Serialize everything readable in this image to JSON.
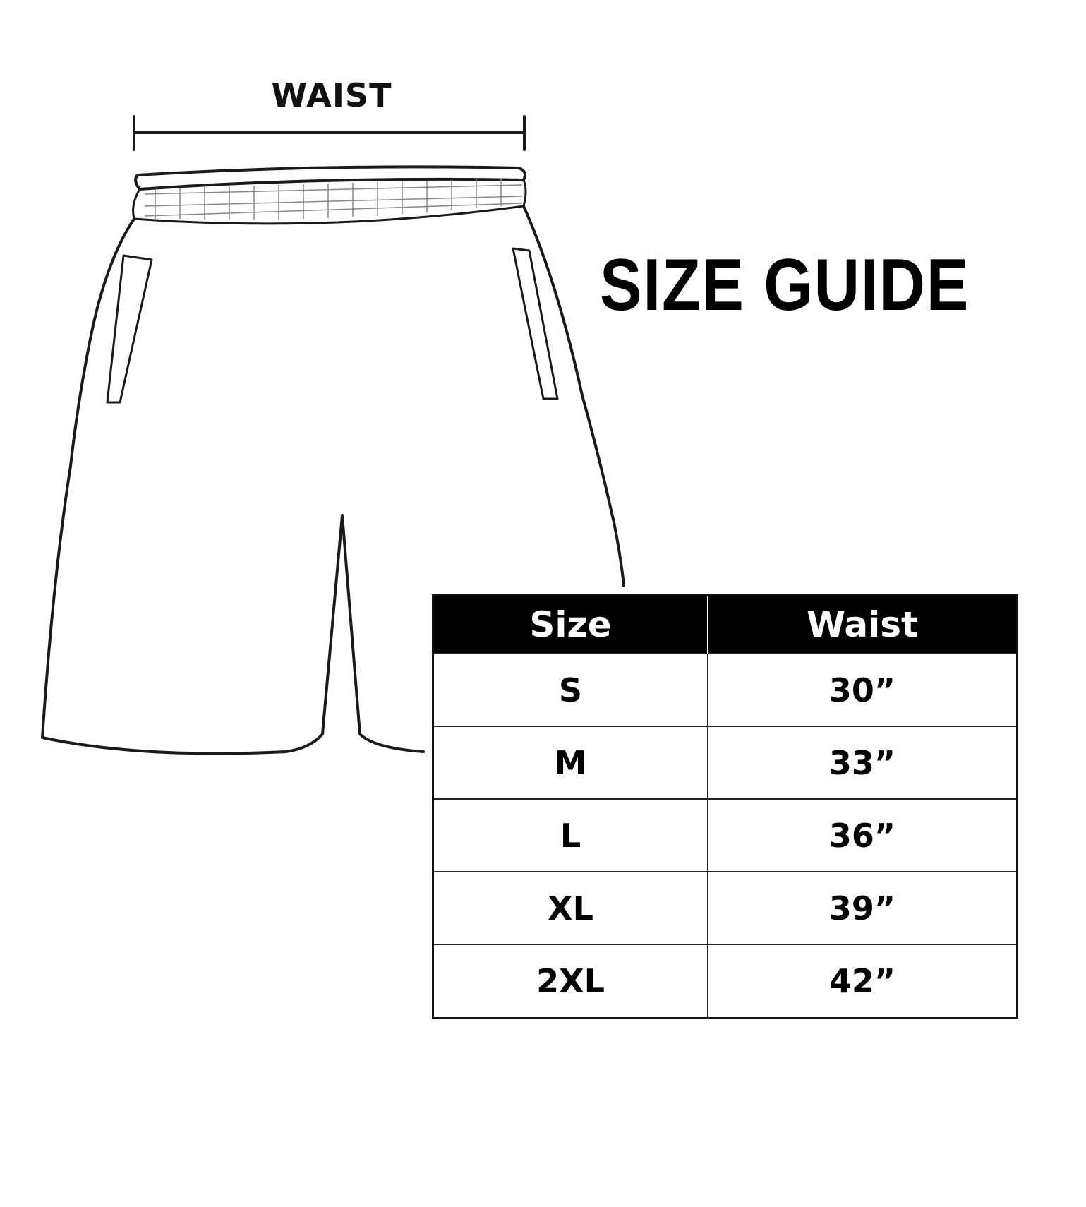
{
  "diagram": {
    "measure_label": "WAIST",
    "title": "SIZE GUIDE"
  },
  "table": {
    "headers": [
      "Size",
      "Waist"
    ],
    "rows": [
      {
        "size": "S",
        "waist": "30”"
      },
      {
        "size": "M",
        "waist": "33”"
      },
      {
        "size": "L",
        "waist": "36”"
      },
      {
        "size": "XL",
        "waist": "39”"
      },
      {
        "size": "2XL",
        "waist": "42”"
      }
    ]
  }
}
